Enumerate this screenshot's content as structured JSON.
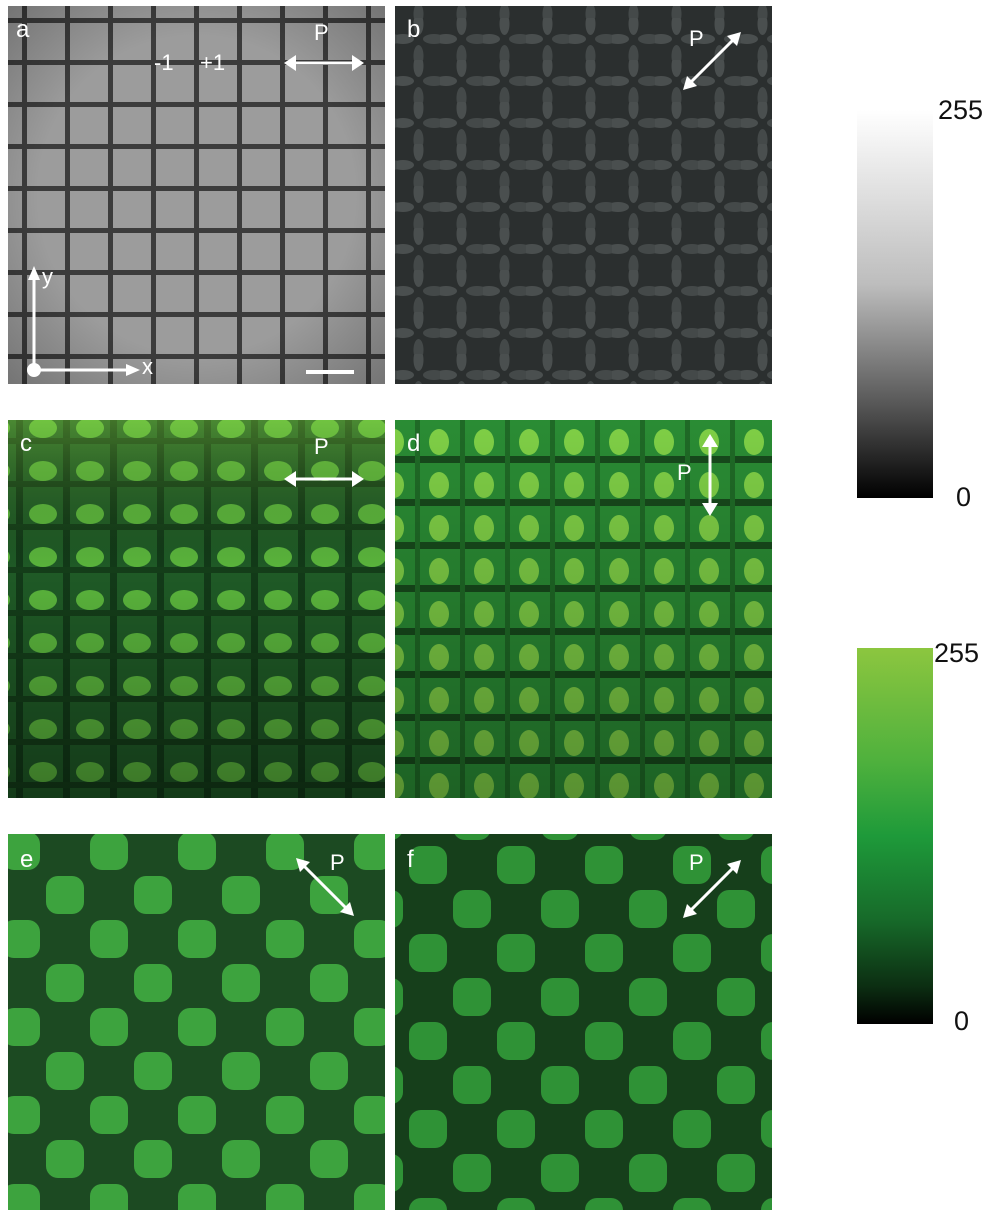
{
  "panels": {
    "a": {
      "label": "a",
      "polarizer": "P",
      "defect_minus": "-1",
      "defect_plus": "+1",
      "axis_x": "x",
      "axis_y": "y"
    },
    "b": {
      "label": "b",
      "polarizer": "P"
    },
    "c": {
      "label": "c",
      "polarizer": "P"
    },
    "d": {
      "label": "d",
      "polarizer": "P"
    },
    "e": {
      "label": "e",
      "polarizer": "P"
    },
    "f": {
      "label": "f",
      "polarizer": "P"
    }
  },
  "colorbars": {
    "gray": {
      "max": "255",
      "min": "0",
      "top_color": "#ffffff",
      "bottom_color": "#000000"
    },
    "green": {
      "max": "255",
      "min": "0",
      "top_color": "#8cc63f",
      "mid_color": "#1e9a3a",
      "bottom_color": "#000000"
    }
  },
  "colors": {
    "gray_background": "#9a9a9a",
    "gray_lines": "#3a3a3a",
    "dark_background": "#2a2e2e",
    "green_bright": "#8fd14a",
    "green_mid": "#2f9e3a",
    "green_dark": "#1a3a1e"
  }
}
